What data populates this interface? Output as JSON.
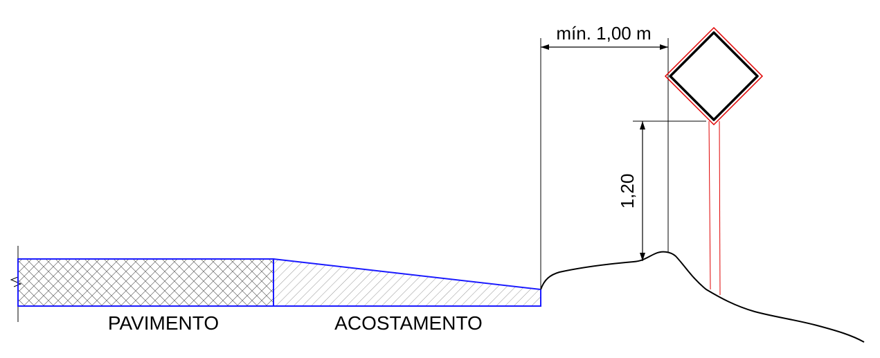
{
  "labels": {
    "pavement": "PAVIMENTO",
    "shoulder": "ACOSTAMENTO",
    "min_offset": "mín. 1,00 m",
    "height": "1,20"
  },
  "colors": {
    "section_outline": "#1a1aff",
    "post_outline": "#e00000",
    "ink": "#000000",
    "hatch": "#555555"
  }
}
